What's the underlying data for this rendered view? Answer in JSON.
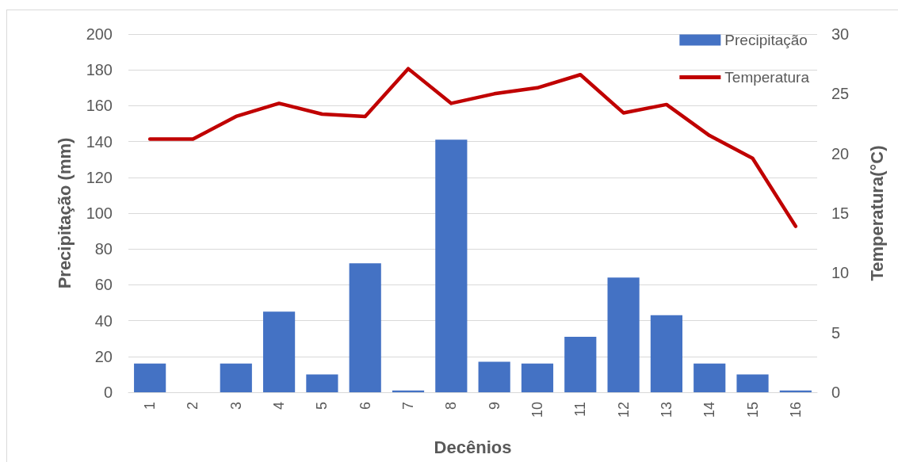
{
  "chart_data": {
    "type": "bar",
    "xlabel": "Decênios",
    "ylabel": "Precipitação (mm)",
    "y2label": "Temperatura(°C)",
    "categories": [
      "1",
      "2",
      "3",
      "4",
      "5",
      "6",
      "7",
      "8",
      "9",
      "10",
      "11",
      "12",
      "13",
      "14",
      "15",
      "16"
    ],
    "series": [
      {
        "name": "Precipitação",
        "color": "#4472c4",
        "values": [
          16,
          0,
          16,
          45,
          10,
          72,
          1,
          141,
          17,
          16,
          31,
          64,
          43,
          16,
          10,
          1
        ]
      },
      {
        "name": "Temperatura",
        "type": "line",
        "axis": "y2",
        "color": "#c00000",
        "values": [
          21.2,
          21.2,
          23.1,
          24.2,
          23.3,
          23.1,
          27.1,
          24.2,
          25.0,
          25.5,
          26.6,
          23.4,
          24.1,
          21.5,
          19.6,
          13.9
        ]
      }
    ],
    "ylim": [
      0,
      200
    ],
    "yticks": [
      0,
      20,
      40,
      60,
      80,
      100,
      120,
      140,
      160,
      180,
      200
    ],
    "y2lim": [
      0,
      30
    ],
    "y2ticks": [
      0,
      5,
      10,
      15,
      20,
      25,
      30
    ],
    "grid": "y",
    "legend": "top right",
    "marker": "none"
  }
}
